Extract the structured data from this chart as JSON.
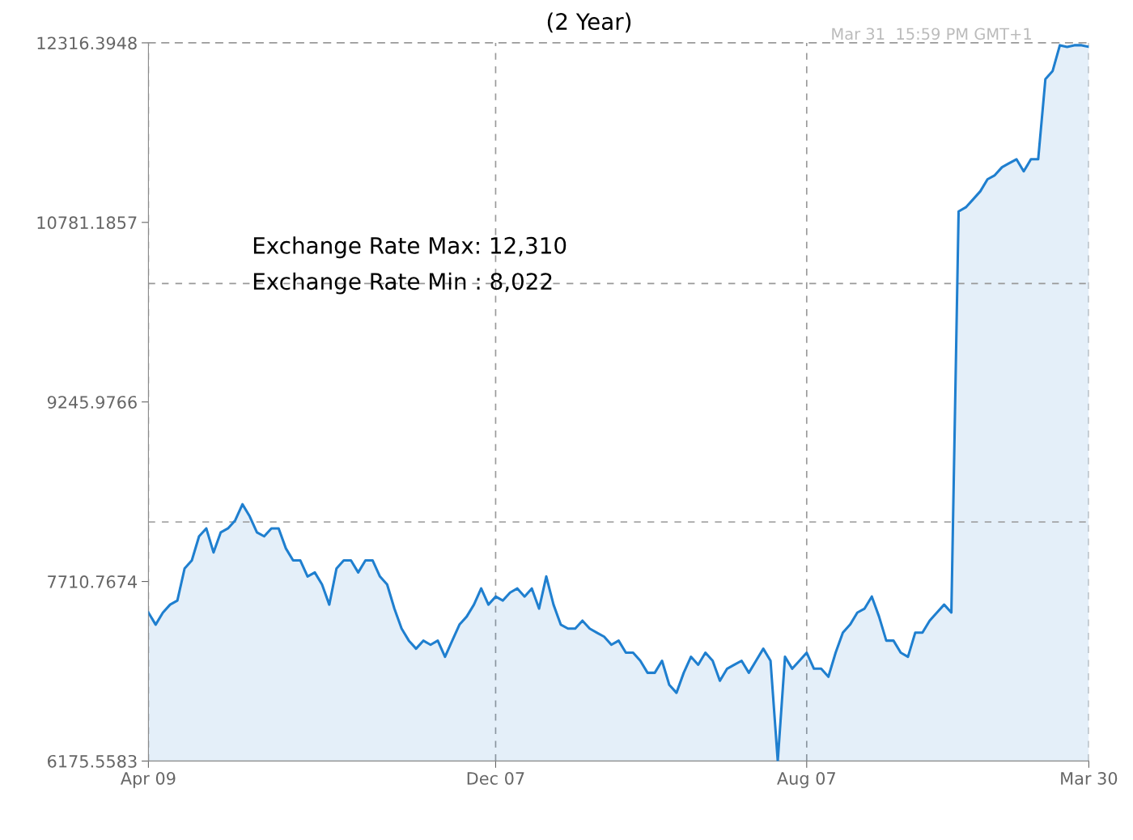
{
  "chart_data": {
    "type": "area",
    "title": "(2 Year)",
    "categories": [
      "Apr 09",
      null,
      null,
      null,
      null,
      null,
      null,
      null,
      null,
      null,
      null,
      null,
      null,
      null,
      null,
      null,
      null,
      null,
      null,
      null,
      null,
      null,
      null,
      null,
      null,
      null,
      null,
      null,
      null,
      null,
      null,
      null,
      null,
      null,
      null,
      null,
      null,
      null,
      null,
      null,
      null,
      null,
      null,
      null,
      null,
      null,
      null,
      null,
      "Dec 07",
      null,
      null,
      null,
      null,
      null,
      null,
      null,
      null,
      null,
      null,
      null,
      null,
      null,
      null,
      null,
      null,
      null,
      null,
      null,
      null,
      null,
      null,
      null,
      null,
      null,
      null,
      null,
      null,
      null,
      null,
      null,
      null,
      null,
      null,
      null,
      null,
      null,
      null,
      null,
      null,
      null,
      null,
      "Aug 07",
      null,
      null,
      null,
      null,
      null,
      null,
      null,
      null,
      null,
      null,
      null,
      null,
      null,
      null,
      null,
      null,
      null,
      null,
      null,
      null,
      null,
      null,
      null,
      null,
      null,
      null,
      null,
      null,
      null,
      null,
      null,
      null,
      null,
      null,
      null,
      null,
      null,
      null,
      "Mar 30"
    ],
    "series": [
      {
        "color": "#1f7fcf",
        "values": [
          7445,
          7342,
          7445,
          7513,
          7548,
          7822,
          7891,
          8097,
          8165,
          7959,
          8131,
          8165,
          8234,
          8371,
          8268,
          8131,
          8097,
          8165,
          8165,
          7994,
          7891,
          7891,
          7754,
          7788,
          7685,
          7513,
          7822,
          7891,
          7891,
          7788,
          7891,
          7891,
          7754,
          7685,
          7479,
          7308,
          7205,
          7136,
          7205,
          7170,
          7205,
          7067,
          7205,
          7342,
          7411,
          7513,
          7651,
          7513,
          7582,
          7548,
          7616,
          7651,
          7582,
          7651,
          7479,
          7754,
          7513,
          7342,
          7308,
          7308,
          7376,
          7308,
          7273,
          7239,
          7170,
          7205,
          7102,
          7102,
          7033,
          6930,
          6930,
          7033,
          6827,
          6759,
          6930,
          7067,
          6999,
          7102,
          7033,
          6862,
          6965,
          6999,
          7033,
          6930,
          7033,
          7136,
          7033,
          6176,
          7067,
          6965,
          7033,
          7102,
          6965,
          6965,
          6896,
          7102,
          7273,
          7342,
          7445,
          7479,
          7582,
          7411,
          7205,
          7205,
          7102,
          7067,
          7273,
          7273,
          7376,
          7445,
          7513,
          7445,
          10875,
          10910,
          10978,
          11047,
          11150,
          11184,
          11253,
          11287,
          11321,
          11218,
          11321,
          11321,
          12007,
          12076,
          12296,
          12282,
          12296,
          12296,
          12282
        ]
      }
    ],
    "ylim": [
      6175.5583,
      12316.3948
    ],
    "yticks": [
      6175.5583,
      7710.7674,
      9245.9766,
      10781.1857,
      12316.3948
    ],
    "ref_lines": [
      {
        "axis": "y",
        "value": 10258,
        "label": null,
        "color": "#999999",
        "line_style": "dashed"
      },
      {
        "axis": "y",
        "value": 8220,
        "label": null,
        "color": "#999999",
        "line_style": "dashed"
      }
    ],
    "annotations": [
      "Exchange Rate Max: 12,310",
      "Exchange Rate Min : 8,022",
      "Mar 31  15:59 PM GMT+1"
    ],
    "grid": "x",
    "legend": false
  }
}
